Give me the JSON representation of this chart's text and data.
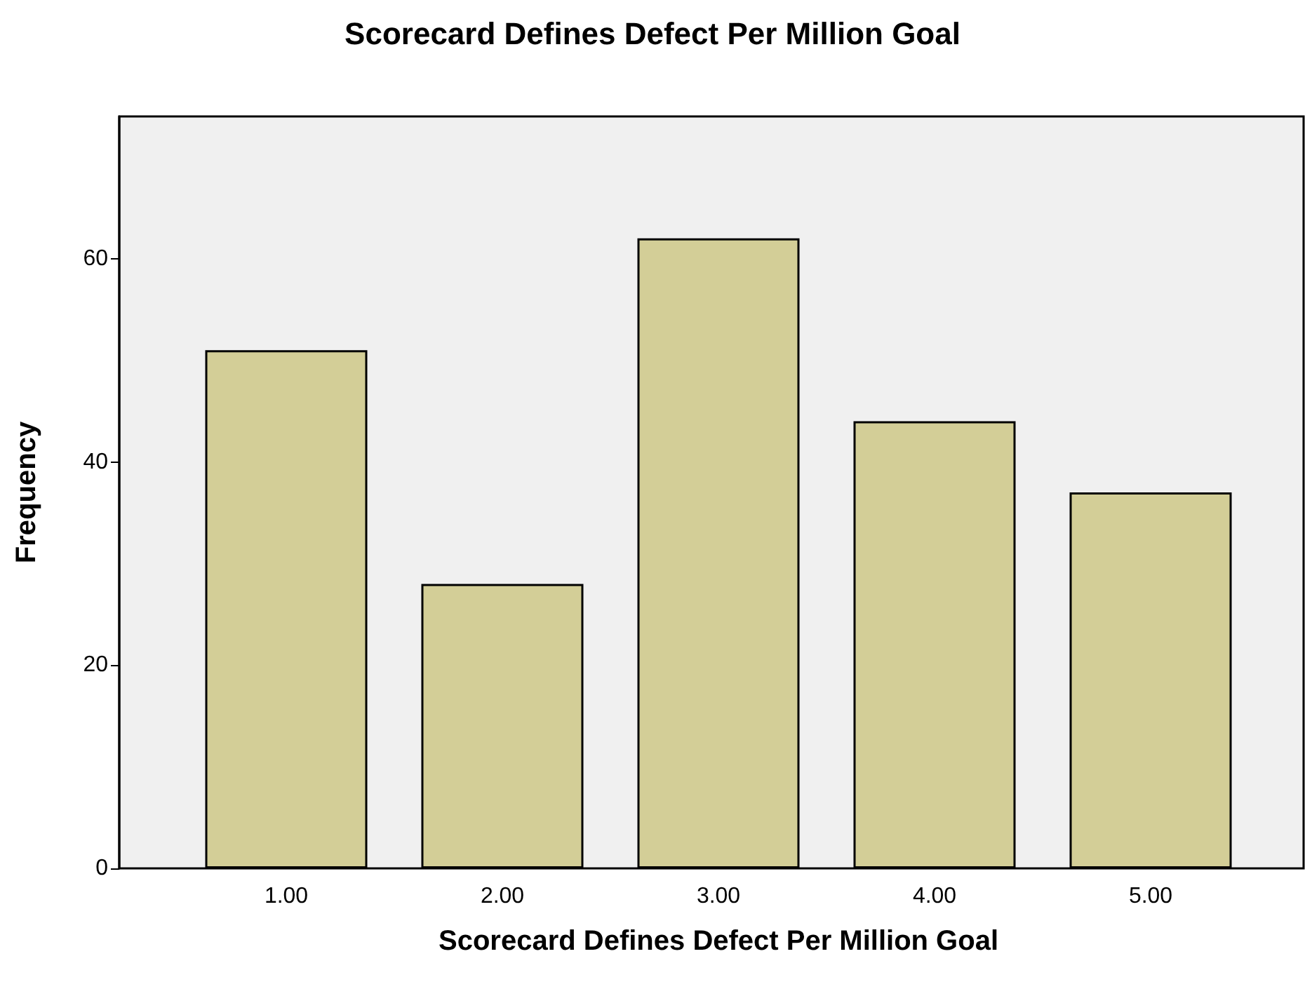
{
  "chart_data": {
    "type": "bar",
    "title": "Scorecard Defines Defect Per Million Goal",
    "xlabel": "Scorecard Defines Defect Per Million Goal",
    "ylabel": "Frequency",
    "categories": [
      "1.00",
      "2.00",
      "3.00",
      "4.00",
      "5.00"
    ],
    "values": [
      51,
      28,
      62,
      44,
      37
    ],
    "color": "#d3ce97",
    "ylim": [
      0,
      74
    ],
    "yticks": [
      0,
      20,
      40,
      60
    ]
  }
}
